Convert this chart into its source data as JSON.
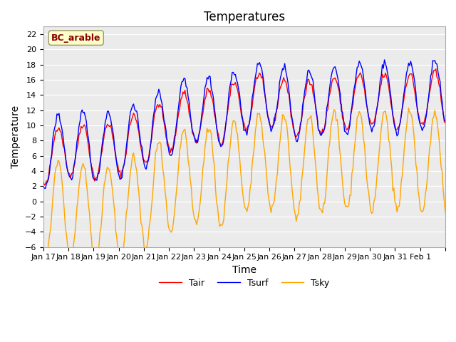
{
  "title": "Temperatures",
  "xlabel": "Time",
  "ylabel": "Temperature",
  "ylim": [
    -6,
    23
  ],
  "yticks": [
    -6,
    -4,
    -2,
    0,
    2,
    4,
    6,
    8,
    10,
    12,
    14,
    16,
    18,
    20,
    22
  ],
  "x_tick_positions": [
    0,
    1,
    2,
    3,
    4,
    5,
    6,
    7,
    8,
    9,
    10,
    11,
    12,
    13,
    14,
    15,
    16
  ],
  "x_tick_labels": [
    "Jan 17",
    "Jan 18",
    "Jan 19",
    "Jan 20",
    "Jan 21",
    "Jan 22",
    "Jan 23",
    "Jan 24",
    "Jan 25",
    "Jan 26",
    "Jan 27",
    "Jan 28",
    "Jan 29",
    "Jan 30",
    "Jan 31",
    "Feb 1",
    ""
  ],
  "site_label": "BC_arable",
  "site_label_color": "#8B0000",
  "site_label_bg": "#FFFFCC",
  "line_colors": {
    "Tair": "#FF0000",
    "Tsurf": "#0000FF",
    "Tsky": "#FFA500"
  },
  "line_width": 1.0,
  "plot_bg_color": "#EBEBEB",
  "grid_color": "#FFFFFF",
  "title_fontsize": 12,
  "axis_label_fontsize": 10,
  "tick_fontsize": 8
}
